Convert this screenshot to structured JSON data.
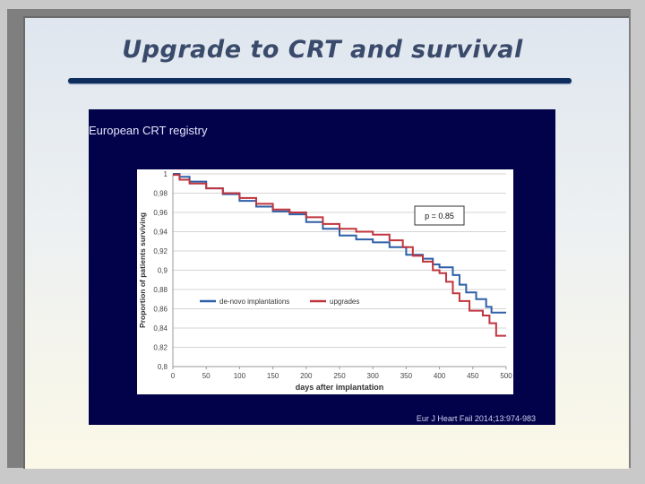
{
  "slide": {
    "title": "Upgrade to CRT and survival"
  },
  "panel": {
    "title": "European CRT registry",
    "citation": "Eur J Heart Fail 2014;13:974-983"
  },
  "chart_data": {
    "type": "line",
    "title": "",
    "xlabel": "days after implantation",
    "ylabel": "Proportion of patients surviving",
    "xlim": [
      0,
      500
    ],
    "ylim": [
      0.8,
      1
    ],
    "x_ticks": [
      "0",
      "50",
      "100",
      "150",
      "200",
      "250",
      "300",
      "350",
      "400",
      "450",
      "500"
    ],
    "y_ticks": [
      "0,8",
      "0,82",
      "0,84",
      "0,86",
      "0,88",
      "0,9",
      "0,92",
      "0,94",
      "0,96",
      "0,98",
      "1"
    ],
    "grid": true,
    "legend_position": "lower-left",
    "annotation": "p = 0.85",
    "series": [
      {
        "name": "de-novo implantations",
        "color": "#2e5fa8",
        "points": [
          [
            0,
            1.0
          ],
          [
            10,
            0.997
          ],
          [
            25,
            0.992
          ],
          [
            50,
            0.985
          ],
          [
            75,
            0.979
          ],
          [
            100,
            0.972
          ],
          [
            125,
            0.966
          ],
          [
            150,
            0.961
          ],
          [
            175,
            0.958
          ],
          [
            200,
            0.95
          ],
          [
            225,
            0.943
          ],
          [
            250,
            0.936
          ],
          [
            275,
            0.932
          ],
          [
            300,
            0.929
          ],
          [
            325,
            0.924
          ],
          [
            350,
            0.916
          ],
          [
            375,
            0.912
          ],
          [
            390,
            0.906
          ],
          [
            400,
            0.903
          ],
          [
            420,
            0.895
          ],
          [
            430,
            0.885
          ],
          [
            440,
            0.877
          ],
          [
            455,
            0.87
          ],
          [
            470,
            0.862
          ],
          [
            478,
            0.856
          ],
          [
            500,
            0.856
          ]
        ]
      },
      {
        "name": "upgrades",
        "color": "#c0353d",
        "points": [
          [
            0,
            0.999
          ],
          [
            10,
            0.994
          ],
          [
            25,
            0.99
          ],
          [
            50,
            0.985
          ],
          [
            75,
            0.98
          ],
          [
            100,
            0.975
          ],
          [
            125,
            0.969
          ],
          [
            150,
            0.963
          ],
          [
            175,
            0.96
          ],
          [
            200,
            0.955
          ],
          [
            225,
            0.948
          ],
          [
            250,
            0.943
          ],
          [
            275,
            0.94
          ],
          [
            300,
            0.937
          ],
          [
            325,
            0.931
          ],
          [
            345,
            0.924
          ],
          [
            360,
            0.915
          ],
          [
            375,
            0.909
          ],
          [
            390,
            0.9
          ],
          [
            400,
            0.897
          ],
          [
            410,
            0.888
          ],
          [
            420,
            0.876
          ],
          [
            430,
            0.868
          ],
          [
            445,
            0.858
          ],
          [
            465,
            0.853
          ],
          [
            475,
            0.845
          ],
          [
            485,
            0.832
          ],
          [
            500,
            0.832
          ]
        ]
      }
    ]
  }
}
